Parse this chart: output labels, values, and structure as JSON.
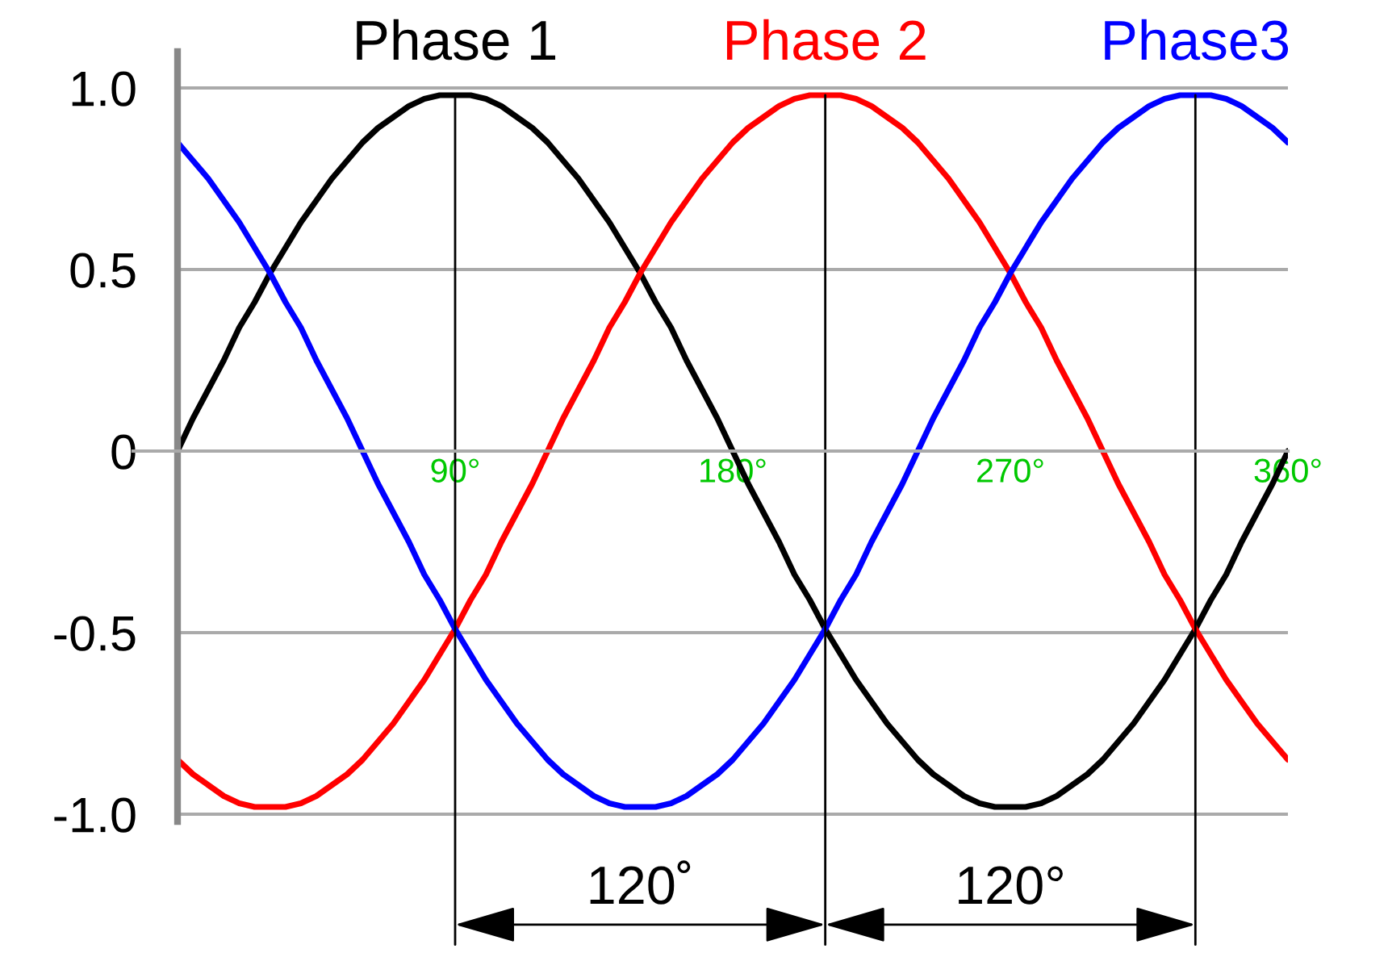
{
  "chart_data": {
    "type": "line",
    "x": [
      0,
      5,
      10,
      15,
      20,
      25,
      30,
      35,
      40,
      45,
      50,
      55,
      60,
      65,
      70,
      75,
      80,
      85,
      90,
      95,
      100,
      105,
      110,
      115,
      120,
      125,
      130,
      135,
      140,
      145,
      150,
      155,
      160,
      165,
      170,
      175,
      180,
      185,
      190,
      195,
      200,
      205,
      210,
      215,
      220,
      225,
      230,
      235,
      240,
      245,
      250,
      255,
      260,
      265,
      270,
      275,
      280,
      285,
      290,
      295,
      300,
      305,
      310,
      315,
      320,
      325,
      330,
      335,
      340,
      345,
      350,
      355,
      360
    ],
    "series": [
      {
        "name": "Phase 1",
        "color": "#000000",
        "values": [
          0,
          0.09,
          0.17,
          0.25,
          0.34,
          0.41,
          0.49,
          0.56,
          0.63,
          0.69,
          0.75,
          0.8,
          0.85,
          0.89,
          0.92,
          0.95,
          0.97,
          0.98,
          0.98,
          0.98,
          0.97,
          0.95,
          0.92,
          0.89,
          0.85,
          0.8,
          0.75,
          0.69,
          0.63,
          0.56,
          0.49,
          0.41,
          0.34,
          0.25,
          0.17,
          0.09,
          0,
          -0.09,
          -0.17,
          -0.25,
          -0.34,
          -0.41,
          -0.49,
          -0.56,
          -0.63,
          -0.69,
          -0.75,
          -0.8,
          -0.85,
          -0.89,
          -0.92,
          -0.95,
          -0.97,
          -0.98,
          -0.98,
          -0.98,
          -0.97,
          -0.95,
          -0.92,
          -0.89,
          -0.85,
          -0.8,
          -0.75,
          -0.69,
          -0.63,
          -0.56,
          -0.49,
          -0.41,
          -0.34,
          -0.25,
          -0.17,
          -0.09,
          0
        ]
      },
      {
        "name": "Phase 2",
        "color": "#ff0000",
        "values": [
          -0.85,
          -0.89,
          -0.92,
          -0.95,
          -0.97,
          -0.98,
          -0.98,
          -0.98,
          -0.97,
          -0.95,
          -0.92,
          -0.89,
          -0.85,
          -0.8,
          -0.75,
          -0.69,
          -0.63,
          -0.56,
          -0.49,
          -0.41,
          -0.34,
          -0.25,
          -0.17,
          -0.09,
          0,
          0.09,
          0.17,
          0.25,
          0.34,
          0.41,
          0.49,
          0.56,
          0.63,
          0.69,
          0.75,
          0.8,
          0.85,
          0.89,
          0.92,
          0.95,
          0.97,
          0.98,
          0.98,
          0.98,
          0.97,
          0.95,
          0.92,
          0.89,
          0.85,
          0.8,
          0.75,
          0.69,
          0.63,
          0.56,
          0.49,
          0.41,
          0.34,
          0.25,
          0.17,
          0.09,
          0,
          -0.09,
          -0.17,
          -0.25,
          -0.34,
          -0.41,
          -0.49,
          -0.56,
          -0.63,
          -0.69,
          -0.75,
          -0.8,
          -0.85
        ]
      },
      {
        "name": "Phase3",
        "color": "#0000ff",
        "values": [
          0.85,
          0.8,
          0.75,
          0.69,
          0.63,
          0.56,
          0.49,
          0.41,
          0.34,
          0.25,
          0.17,
          0.09,
          0,
          -0.09,
          -0.17,
          -0.25,
          -0.34,
          -0.41,
          -0.49,
          -0.56,
          -0.63,
          -0.69,
          -0.75,
          -0.8,
          -0.85,
          -0.89,
          -0.92,
          -0.95,
          -0.97,
          -0.98,
          -0.98,
          -0.98,
          -0.97,
          -0.95,
          -0.92,
          -0.89,
          -0.85,
          -0.8,
          -0.75,
          -0.69,
          -0.63,
          -0.56,
          -0.49,
          -0.41,
          -0.34,
          -0.25,
          -0.17,
          -0.09,
          0,
          0.09,
          0.17,
          0.25,
          0.34,
          0.41,
          0.49,
          0.56,
          0.63,
          0.69,
          0.75,
          0.8,
          0.85,
          0.89,
          0.92,
          0.95,
          0.97,
          0.98,
          0.98,
          0.98,
          0.97,
          0.95,
          0.92,
          0.89,
          0.85
        ]
      }
    ],
    "xlim": [
      0,
      360
    ],
    "ylim": [
      -1.02,
      1.1
    ],
    "xticks": [
      {
        "value": 90,
        "label": "90°"
      },
      {
        "value": 180,
        "label": "180°"
      },
      {
        "value": 270,
        "label": "270°"
      },
      {
        "value": 360,
        "label": "360°"
      }
    ],
    "yticks": [
      {
        "value": -1,
        "label": "-1.0"
      },
      -0.5,
      0,
      0.5,
      {
        "value": 1,
        "label": "1.0"
      }
    ],
    "grid": "y",
    "ref_lines": [
      {
        "axis": "x",
        "value": 90,
        "color": "#000000"
      },
      {
        "axis": "x",
        "value": 210,
        "color": "#000000"
      },
      {
        "axis": "x",
        "value": 330,
        "color": "#000000"
      }
    ],
    "annotations": [
      "120˚",
      "120°"
    ]
  }
}
